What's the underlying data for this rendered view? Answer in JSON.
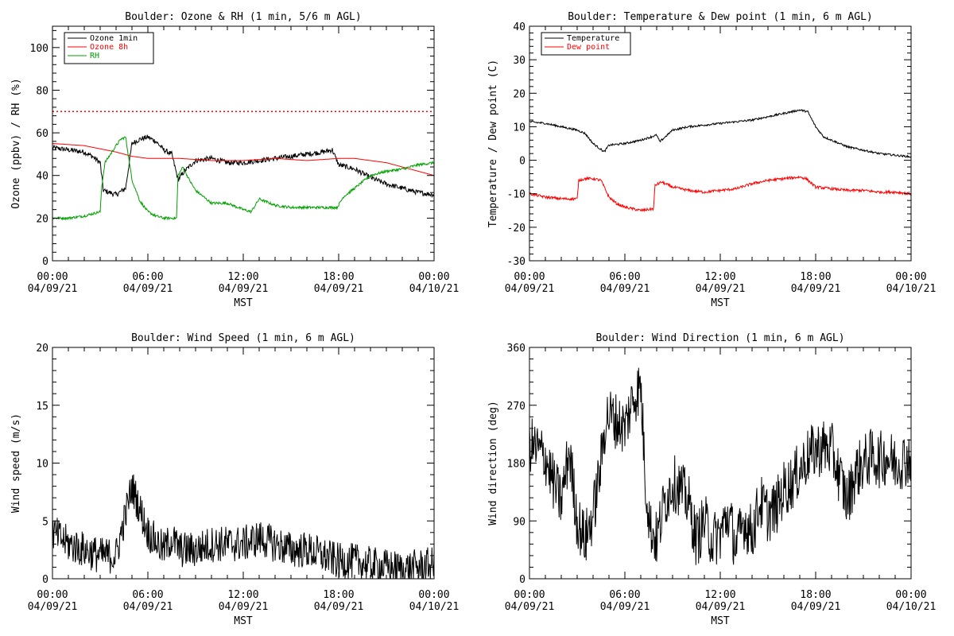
{
  "chart_data": [
    {
      "id": "ozone_rh",
      "type": "line",
      "title": "Boulder: Ozone & RH (1 min, 5/6 m AGL)",
      "xlabel": "MST",
      "ylabel": "Ozone (ppbv) / RH (%)",
      "ylim": [
        0,
        110
      ],
      "yticks": [
        0,
        20,
        40,
        60,
        80,
        100
      ],
      "xlim": [
        0,
        24
      ],
      "xticks": [
        0,
        6,
        12,
        18,
        24
      ],
      "xtick_labels": [
        [
          "00:00",
          "04/09/21"
        ],
        [
          "06:00",
          "04/09/21"
        ],
        [
          "12:00",
          "04/09/21"
        ],
        [
          "18:00",
          "04/09/21"
        ],
        [
          "00:00",
          "04/10/21"
        ]
      ],
      "legend_position": "top-left",
      "hline": {
        "y": 70,
        "color": "#ff0000",
        "style": "dotted"
      },
      "series": [
        {
          "name": "Ozone 1min",
          "color": "#000000",
          "noise": 1.2,
          "x": [
            0,
            1,
            2,
            2.5,
            3,
            3.2,
            4,
            4.6,
            5,
            5.5,
            6,
            6.5,
            7,
            7.5,
            7.9,
            8.3,
            9,
            10,
            11,
            12,
            13,
            14,
            15,
            16,
            17,
            17.6,
            18,
            19,
            20,
            21,
            22,
            23,
            24
          ],
          "y": [
            53,
            52,
            51,
            49,
            46,
            33,
            31,
            34,
            55,
            57,
            58,
            56,
            52,
            50,
            38,
            42,
            47,
            48,
            46,
            46,
            47,
            48,
            49,
            50,
            51,
            52,
            45,
            43,
            39,
            36,
            34,
            32,
            31
          ]
        },
        {
          "name": "Ozone 8h",
          "color": "#ff0000",
          "noise": 0,
          "x": [
            0,
            2,
            4,
            5,
            6,
            8,
            10,
            12,
            14,
            16,
            18,
            19,
            20,
            21,
            22,
            23,
            24
          ],
          "y": [
            55,
            54,
            51,
            49,
            48,
            48,
            47,
            47,
            48,
            47,
            48,
            48,
            47,
            46,
            44,
            42,
            40
          ]
        },
        {
          "name": "RH",
          "color": "#00a000",
          "noise": 0.6,
          "x": [
            0,
            1,
            2,
            3,
            3.1,
            3.3,
            4,
            4.3,
            4.6,
            4.8,
            5,
            5.5,
            6,
            6.5,
            7,
            7.8,
            7.9,
            8.2,
            8.6,
            9,
            10,
            11,
            12,
            12.5,
            13,
            14,
            15,
            16,
            17,
            17.9,
            18.3,
            19,
            20,
            21,
            22,
            23,
            24
          ],
          "y": [
            20,
            20,
            21,
            23,
            35,
            46,
            54,
            57,
            58,
            48,
            38,
            28,
            23,
            21,
            20,
            20,
            40,
            44,
            38,
            33,
            27,
            27,
            24,
            23,
            29,
            26,
            25,
            25,
            25,
            25,
            30,
            34,
            40,
            42,
            43,
            45,
            46
          ]
        }
      ]
    },
    {
      "id": "temp_dew",
      "type": "line",
      "title": "Boulder: Temperature & Dew point (1 min, 6 m AGL)",
      "xlabel": "MST",
      "ylabel": "Temperature / Dew point (C)",
      "ylim": [
        -30,
        40
      ],
      "yticks": [
        -30,
        -20,
        -10,
        0,
        10,
        20,
        30,
        40
      ],
      "xlim": [
        0,
        24
      ],
      "xticks": [
        0,
        6,
        12,
        18,
        24
      ],
      "xtick_labels": [
        [
          "00:00",
          "04/09/21"
        ],
        [
          "06:00",
          "04/09/21"
        ],
        [
          "12:00",
          "04/09/21"
        ],
        [
          "18:00",
          "04/09/21"
        ],
        [
          "00:00",
          "04/10/21"
        ]
      ],
      "legend_position": "top-left",
      "series": [
        {
          "name": "Temperature",
          "color": "#000000",
          "noise": 0.3,
          "x": [
            0,
            1,
            2,
            3,
            3.5,
            4,
            4.7,
            5,
            6,
            7,
            8,
            8.2,
            9,
            10,
            11,
            12,
            13,
            14,
            15,
            16,
            17,
            17.5,
            18,
            18.5,
            19,
            20,
            21,
            22,
            23,
            24
          ],
          "y": [
            11.5,
            11,
            10,
            9,
            8,
            5,
            2.5,
            4.5,
            5,
            6,
            7.5,
            5.5,
            9,
            10,
            10.5,
            11,
            11.5,
            12,
            13,
            14,
            15,
            14.5,
            10,
            7,
            6,
            4,
            3,
            2,
            1.5,
            1
          ]
        },
        {
          "name": "Dew point",
          "color": "#ff0000",
          "noise": 0.4,
          "x": [
            0,
            1,
            2,
            3,
            3.1,
            3.5,
            4,
            4.5,
            5,
            5.5,
            6,
            7,
            7.8,
            7.9,
            8.3,
            9,
            10,
            11,
            12,
            13,
            14,
            15,
            16,
            17,
            17.4,
            18,
            19,
            20,
            21,
            22,
            23,
            24
          ],
          "y": [
            -10,
            -11,
            -11.5,
            -11.5,
            -6,
            -5.5,
            -5.5,
            -6,
            -11,
            -13,
            -14,
            -15,
            -14.5,
            -7.5,
            -6.5,
            -8,
            -9,
            -9.5,
            -9,
            -8.5,
            -7,
            -6,
            -5.5,
            -5,
            -5.5,
            -8,
            -8.5,
            -9,
            -9,
            -9.5,
            -9.5,
            -10
          ]
        }
      ]
    },
    {
      "id": "wind_speed",
      "type": "line",
      "title": "Boulder: Wind Speed (1 min, 6 m AGL)",
      "xlabel": "MST",
      "ylabel": "Wind speed (m/s)",
      "ylim": [
        0,
        20
      ],
      "yticks": [
        0,
        5,
        10,
        15,
        20
      ],
      "xlim": [
        0,
        24
      ],
      "xticks": [
        0,
        6,
        12,
        18,
        24
      ],
      "xtick_labels": [
        [
          "00:00",
          "04/09/21"
        ],
        [
          "06:00",
          "04/09/21"
        ],
        [
          "12:00",
          "04/09/21"
        ],
        [
          "18:00",
          "04/09/21"
        ],
        [
          "00:00",
          "04/10/21"
        ]
      ],
      "series": [
        {
          "name": "",
          "color": "#000000",
          "noise": 1.6,
          "floor": 0,
          "x": [
            0,
            1,
            2,
            3,
            4,
            4.5,
            5,
            5.5,
            6,
            7,
            7.5,
            8,
            9,
            10,
            11,
            12,
            13,
            14,
            15,
            16,
            17,
            18,
            19,
            20,
            21,
            22,
            23,
            24
          ],
          "y": [
            4,
            3,
            2.5,
            2,
            2,
            5,
            8,
            6,
            4,
            2.5,
            3.5,
            2.5,
            2.5,
            3,
            3,
            3,
            3.5,
            3,
            2.5,
            2.5,
            2,
            1.5,
            1.5,
            1.2,
            1,
            0.8,
            1,
            1.2
          ]
        }
      ]
    },
    {
      "id": "wind_dir",
      "type": "line",
      "title": "Boulder: Wind Direction (1 min, 6 m AGL)",
      "xlabel": "MST",
      "ylabel": "Wind direction (deg)",
      "ylim": [
        0,
        360
      ],
      "yticks": [
        0,
        90,
        180,
        270,
        360
      ],
      "xlim": [
        0,
        24
      ],
      "xticks": [
        0,
        6,
        12,
        18,
        24
      ],
      "xtick_labels": [
        [
          "00:00",
          "04/09/21"
        ],
        [
          "06:00",
          "04/09/21"
        ],
        [
          "12:00",
          "04/09/21"
        ],
        [
          "18:00",
          "04/09/21"
        ],
        [
          "00:00",
          "04/10/21"
        ]
      ],
      "series": [
        {
          "name": "",
          "color": "#000000",
          "noise": 45,
          "floor": 0,
          "ceil": 360,
          "x": [
            0,
            0.5,
            1,
            1.5,
            2,
            2.5,
            3,
            3.5,
            4,
            4.5,
            4.8,
            5,
            5.5,
            6,
            6.5,
            7,
            7.3,
            7.6,
            8,
            8.5,
            9,
            9.5,
            10,
            10.5,
            11,
            11.5,
            12,
            12.5,
            13,
            13.5,
            14,
            14.5,
            15,
            15.5,
            16,
            16.5,
            17,
            17.5,
            18,
            18.5,
            19,
            19.5,
            20,
            20.5,
            21,
            21.5,
            22,
            22.5,
            23,
            23.5,
            24
          ],
          "y": [
            210,
            200,
            190,
            150,
            120,
            200,
            90,
            60,
            100,
            180,
            250,
            255,
            245,
            235,
            280,
            300,
            150,
            80,
            60,
            120,
            150,
            140,
            120,
            60,
            90,
            60,
            70,
            100,
            50,
            90,
            70,
            120,
            100,
            110,
            140,
            150,
            170,
            190,
            200,
            205,
            200,
            160,
            120,
            165,
            180,
            190,
            185,
            190,
            180,
            185,
            190
          ]
        }
      ]
    }
  ]
}
